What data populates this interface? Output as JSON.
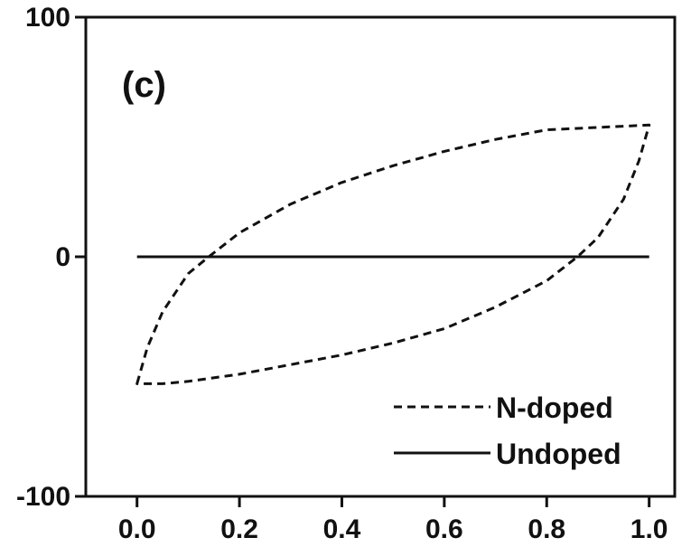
{
  "chart_data": {
    "type": "line",
    "title": "",
    "xlabel": "",
    "ylabel": "",
    "xlim": [
      -0.1,
      1.05
    ],
    "ylim": [
      -100,
      100
    ],
    "x_ticks": [
      0.0,
      0.2,
      0.4,
      0.6,
      0.8,
      1.0
    ],
    "x_tick_labels": [
      "0.0",
      "0.2",
      "0.4",
      "0.6",
      "0.8",
      "1.0"
    ],
    "y_ticks": [
      -100,
      0,
      100
    ],
    "y_tick_labels": [
      "-100",
      "0",
      "100"
    ],
    "grid": false,
    "legend_position": "bottom-right",
    "annotation": "(c)",
    "series": [
      {
        "name": "N-doped",
        "style": "dashed",
        "color": "#111111",
        "x": [
          0.0,
          0.02,
          0.05,
          0.1,
          0.14,
          0.2,
          0.3,
          0.4,
          0.5,
          0.6,
          0.7,
          0.8,
          0.9,
          1.0,
          0.98,
          0.95,
          0.9,
          0.86,
          0.8,
          0.7,
          0.6,
          0.5,
          0.4,
          0.3,
          0.2,
          0.1,
          0.05,
          0.0
        ],
        "y": [
          -53,
          -38,
          -23,
          -7,
          0,
          10,
          22,
          31,
          38,
          44,
          49,
          53,
          54,
          55,
          40,
          24,
          8,
          0,
          -10,
          -21,
          -30,
          -36,
          -41,
          -45,
          -49,
          -52,
          -53,
          -53
        ]
      },
      {
        "name": "Undoped",
        "style": "solid",
        "color": "#111111",
        "x": [
          0.0,
          1.0
        ],
        "y": [
          0,
          0
        ]
      }
    ]
  }
}
